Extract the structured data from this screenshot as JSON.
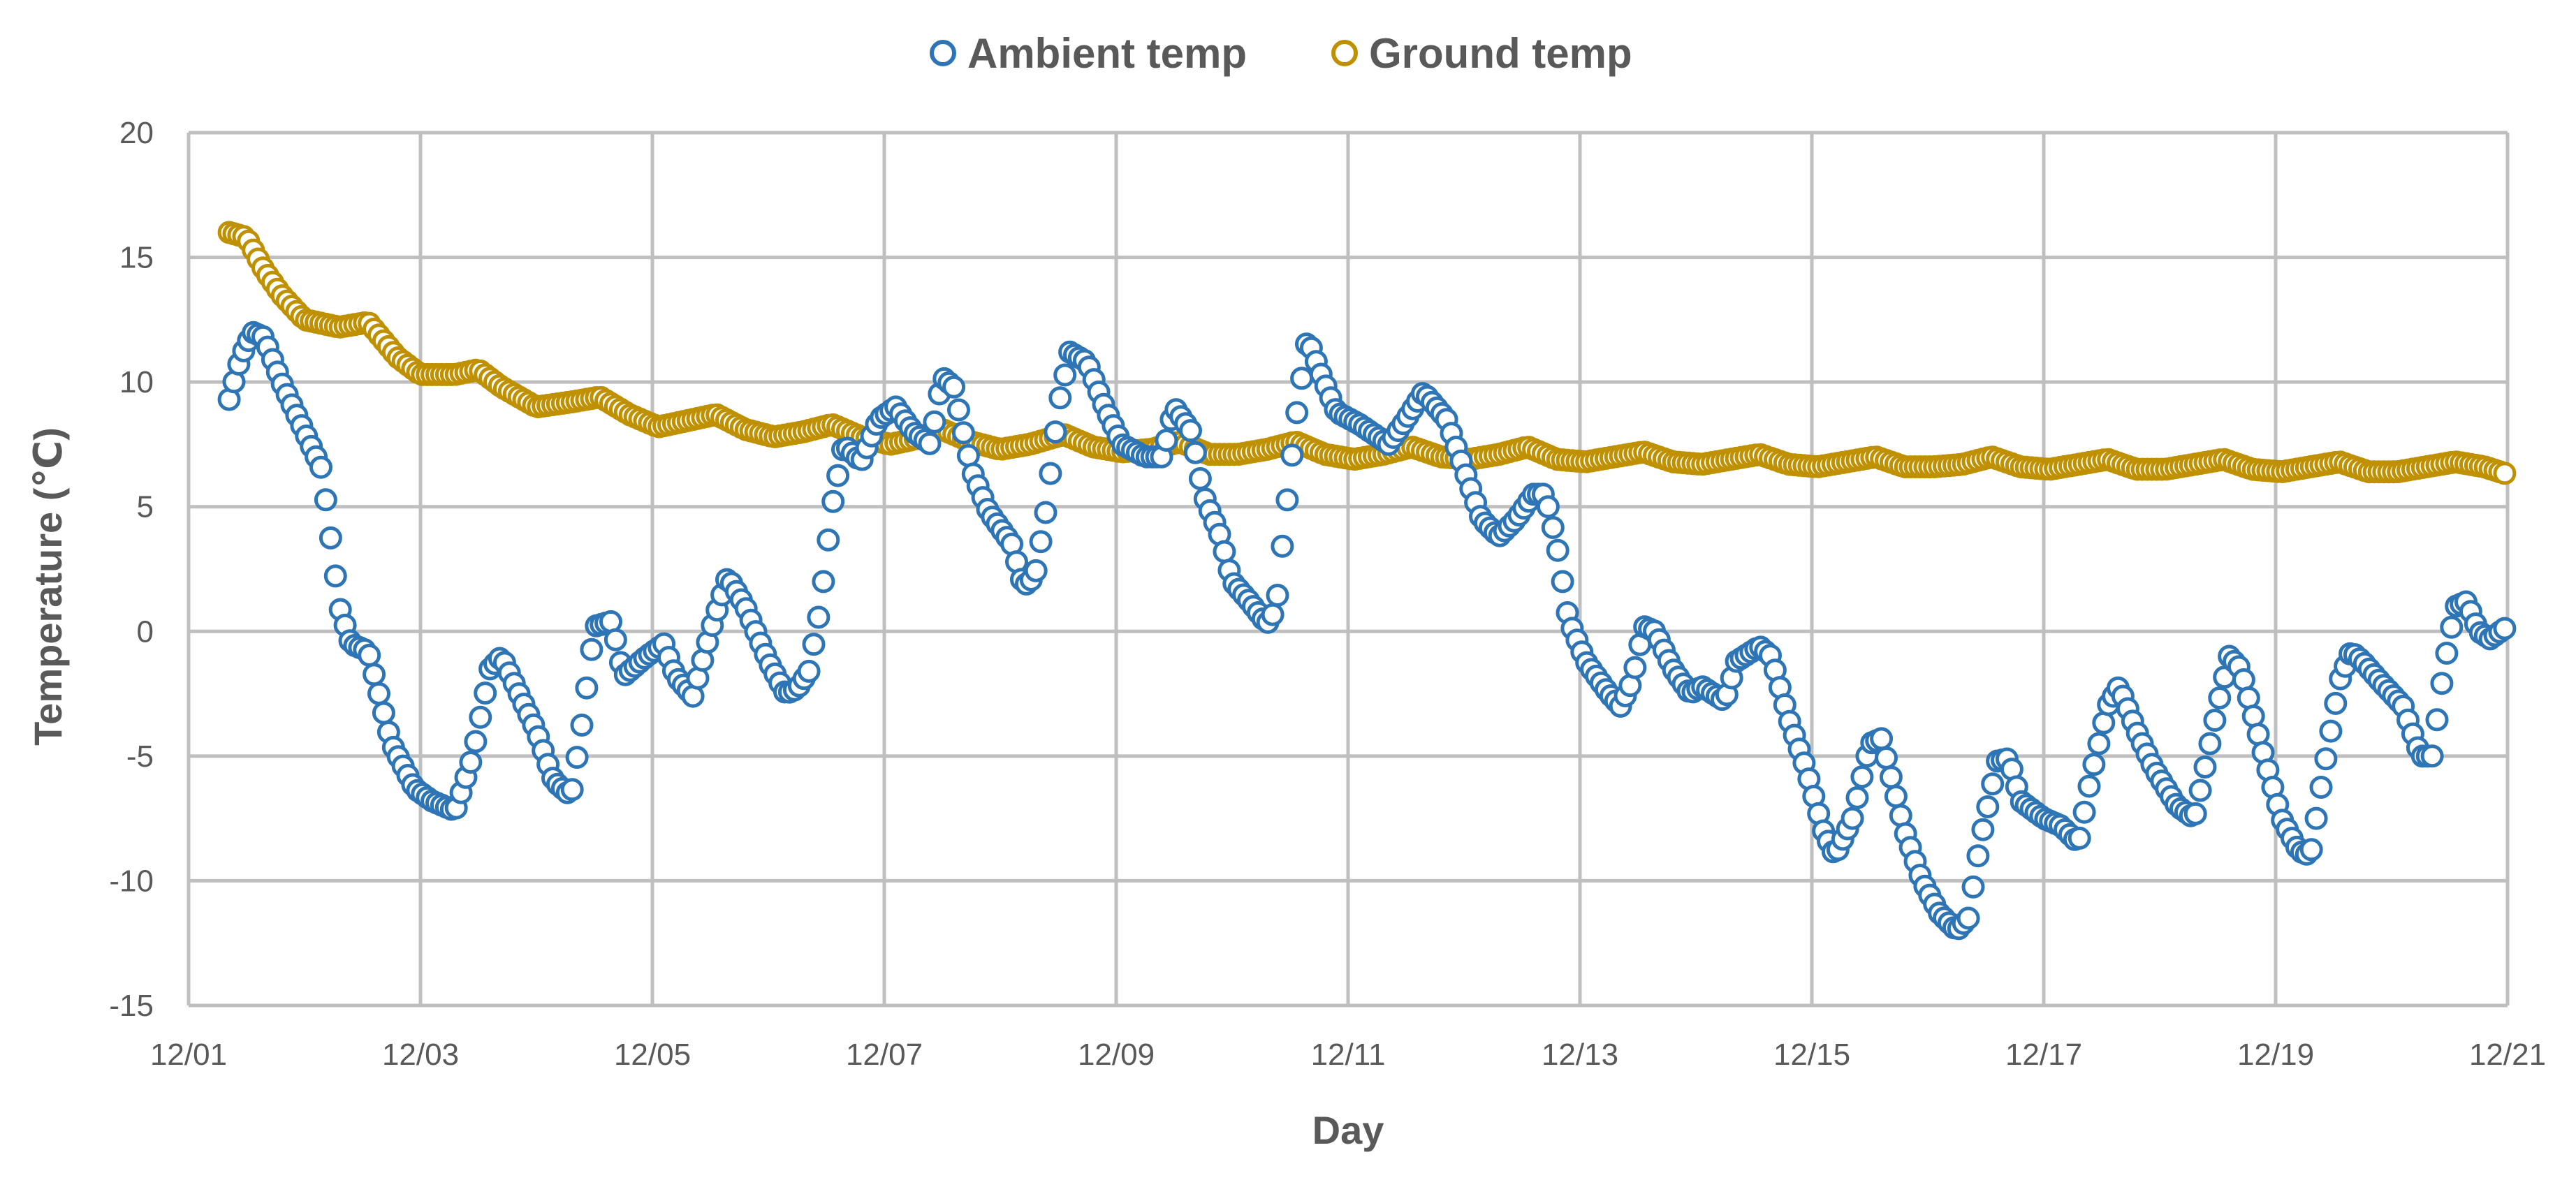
{
  "chart_data": {
    "type": "scatter",
    "title": "",
    "xlabel": "Day",
    "ylabel": "Temperature (℃)",
    "xlim": [
      1,
      21
    ],
    "ylim": [
      -15,
      20
    ],
    "yticks": [
      -15,
      -10,
      -5,
      0,
      5,
      10,
      15,
      20
    ],
    "xticks": [
      {
        "day": 1,
        "label": "12/01"
      },
      {
        "day": 3,
        "label": "12/03"
      },
      {
        "day": 5,
        "label": "12/05"
      },
      {
        "day": 7,
        "label": "12/07"
      },
      {
        "day": 9,
        "label": "12/09"
      },
      {
        "day": 11,
        "label": "12/11"
      },
      {
        "day": 13,
        "label": "12/13"
      },
      {
        "day": 15,
        "label": "12/15"
      },
      {
        "day": 17,
        "label": "12/17"
      },
      {
        "day": 19,
        "label": "12/19"
      },
      {
        "day": 21,
        "label": "12/21"
      }
    ],
    "grid": true,
    "legend_position": "top-center",
    "sample_interval_days": 0.0416667,
    "series": [
      {
        "name": "Ambient temp",
        "color": "#2E75B6",
        "anchors": [
          [
            1.35,
            9.3
          ],
          [
            1.45,
            11.0
          ],
          [
            1.55,
            12.0
          ],
          [
            1.65,
            11.8
          ],
          [
            1.8,
            10.0
          ],
          [
            2.0,
            8.0
          ],
          [
            2.15,
            6.5
          ],
          [
            2.3,
            1.0
          ],
          [
            2.4,
            -0.5
          ],
          [
            2.55,
            -0.8
          ],
          [
            2.75,
            -4.5
          ],
          [
            2.95,
            -6.3
          ],
          [
            3.1,
            -6.8
          ],
          [
            3.3,
            -7.2
          ],
          [
            3.45,
            -5.0
          ],
          [
            3.6,
            -1.5
          ],
          [
            3.7,
            -1.0
          ],
          [
            3.85,
            -2.5
          ],
          [
            4.0,
            -4.0
          ],
          [
            4.15,
            -6.0
          ],
          [
            4.3,
            -6.6
          ],
          [
            4.4,
            -3.5
          ],
          [
            4.5,
            0.2
          ],
          [
            4.65,
            0.4
          ],
          [
            4.75,
            -1.8
          ],
          [
            4.95,
            -1.0
          ],
          [
            5.1,
            -0.5
          ],
          [
            5.2,
            -1.8
          ],
          [
            5.35,
            -2.6
          ],
          [
            5.5,
            0.0
          ],
          [
            5.65,
            2.2
          ],
          [
            5.8,
            1.0
          ],
          [
            6.0,
            -1.2
          ],
          [
            6.15,
            -2.5
          ],
          [
            6.25,
            -2.3
          ],
          [
            6.35,
            -1.6
          ],
          [
            6.45,
            1.0
          ],
          [
            6.55,
            5.0
          ],
          [
            6.65,
            7.5
          ],
          [
            6.8,
            6.8
          ],
          [
            6.95,
            8.5
          ],
          [
            7.1,
            9.0
          ],
          [
            7.25,
            8.0
          ],
          [
            7.4,
            7.5
          ],
          [
            7.5,
            10.2
          ],
          [
            7.6,
            9.8
          ],
          [
            7.75,
            6.5
          ],
          [
            7.9,
            4.8
          ],
          [
            8.1,
            3.5
          ],
          [
            8.2,
            1.8
          ],
          [
            8.3,
            2.2
          ],
          [
            8.4,
            5.0
          ],
          [
            8.5,
            9.0
          ],
          [
            8.6,
            11.2
          ],
          [
            8.75,
            10.8
          ],
          [
            8.9,
            9.0
          ],
          [
            9.05,
            7.5
          ],
          [
            9.25,
            7.0
          ],
          [
            9.4,
            7.0
          ],
          [
            9.5,
            9.0
          ],
          [
            9.65,
            8.0
          ],
          [
            9.75,
            5.5
          ],
          [
            9.9,
            3.8
          ],
          [
            10.0,
            2.0
          ],
          [
            10.15,
            1.2
          ],
          [
            10.3,
            0.3
          ],
          [
            10.38,
            0.9
          ],
          [
            10.45,
            4.2
          ],
          [
            10.55,
            8.5
          ],
          [
            10.65,
            11.8
          ],
          [
            10.75,
            10.5
          ],
          [
            10.9,
            8.8
          ],
          [
            11.1,
            8.3
          ],
          [
            11.35,
            7.5
          ],
          [
            11.5,
            8.5
          ],
          [
            11.65,
            9.6
          ],
          [
            11.85,
            8.5
          ],
          [
            12.0,
            6.5
          ],
          [
            12.15,
            4.5
          ],
          [
            12.3,
            3.8
          ],
          [
            12.45,
            4.5
          ],
          [
            12.6,
            5.5
          ],
          [
            12.7,
            5.5
          ],
          [
            12.8,
            3.5
          ],
          [
            12.9,
            0.5
          ],
          [
            13.05,
            -1.2
          ],
          [
            13.25,
            -2.5
          ],
          [
            13.35,
            -3.0
          ],
          [
            13.45,
            -2.0
          ],
          [
            13.55,
            0.2
          ],
          [
            13.65,
            0.0
          ],
          [
            13.8,
            -1.5
          ],
          [
            13.95,
            -2.5
          ],
          [
            14.05,
            -2.2
          ],
          [
            14.25,
            -2.8
          ],
          [
            14.35,
            -1.2
          ],
          [
            14.55,
            -0.6
          ],
          [
            14.65,
            -1.0
          ],
          [
            14.8,
            -3.5
          ],
          [
            14.95,
            -5.5
          ],
          [
            15.1,
            -8.0
          ],
          [
            15.2,
            -9.0
          ],
          [
            15.35,
            -7.5
          ],
          [
            15.5,
            -4.5
          ],
          [
            15.6,
            -4.3
          ],
          [
            15.8,
            -8.0
          ],
          [
            15.95,
            -10.0
          ],
          [
            16.1,
            -11.3
          ],
          [
            16.25,
            -12.0
          ],
          [
            16.35,
            -11.5
          ],
          [
            16.45,
            -8.5
          ],
          [
            16.6,
            -5.2
          ],
          [
            16.7,
            -5.1
          ],
          [
            16.8,
            -6.8
          ],
          [
            17.0,
            -7.5
          ],
          [
            17.15,
            -7.8
          ],
          [
            17.3,
            -8.5
          ],
          [
            17.4,
            -6.0
          ],
          [
            17.55,
            -3.0
          ],
          [
            17.65,
            -2.2
          ],
          [
            17.8,
            -4.0
          ],
          [
            17.95,
            -5.5
          ],
          [
            18.15,
            -7.0
          ],
          [
            18.3,
            -7.5
          ],
          [
            18.5,
            -3.0
          ],
          [
            18.6,
            -1.0
          ],
          [
            18.7,
            -1.5
          ],
          [
            18.9,
            -5.0
          ],
          [
            19.05,
            -7.5
          ],
          [
            19.2,
            -8.8
          ],
          [
            19.3,
            -9.0
          ],
          [
            19.4,
            -6.0
          ],
          [
            19.55,
            -2.0
          ],
          [
            19.65,
            -0.8
          ],
          [
            19.75,
            -1.2
          ],
          [
            19.9,
            -2.0
          ],
          [
            20.1,
            -3.0
          ],
          [
            20.25,
            -5.0
          ],
          [
            20.35,
            -5.0
          ],
          [
            20.45,
            -1.5
          ],
          [
            20.55,
            1.0
          ],
          [
            20.65,
            1.2
          ],
          [
            20.75,
            0.0
          ],
          [
            20.85,
            -0.3
          ],
          [
            21.0,
            0.2
          ]
        ]
      },
      {
        "name": "Ground temp",
        "color": "#BF9000",
        "anchors": [
          [
            1.35,
            16.0
          ],
          [
            1.5,
            15.8
          ],
          [
            1.65,
            14.5
          ],
          [
            1.8,
            13.5
          ],
          [
            2.0,
            12.5
          ],
          [
            2.3,
            12.2
          ],
          [
            2.55,
            12.4
          ],
          [
            2.8,
            11.0
          ],
          [
            3.0,
            10.3
          ],
          [
            3.3,
            10.3
          ],
          [
            3.5,
            10.5
          ],
          [
            3.7,
            9.8
          ],
          [
            4.0,
            9.0
          ],
          [
            4.3,
            9.2
          ],
          [
            4.55,
            9.4
          ],
          [
            4.8,
            8.7
          ],
          [
            5.05,
            8.2
          ],
          [
            5.35,
            8.5
          ],
          [
            5.55,
            8.7
          ],
          [
            5.8,
            8.1
          ],
          [
            6.05,
            7.8
          ],
          [
            6.3,
            8.0
          ],
          [
            6.55,
            8.3
          ],
          [
            6.8,
            7.8
          ],
          [
            7.05,
            7.5
          ],
          [
            7.25,
            7.7
          ],
          [
            7.5,
            8.1
          ],
          [
            7.75,
            7.6
          ],
          [
            8.0,
            7.3
          ],
          [
            8.25,
            7.5
          ],
          [
            8.55,
            7.9
          ],
          [
            8.8,
            7.4
          ],
          [
            9.05,
            7.2
          ],
          [
            9.3,
            7.3
          ],
          [
            9.55,
            7.6
          ],
          [
            9.8,
            7.1
          ],
          [
            10.05,
            7.1
          ],
          [
            10.3,
            7.3
          ],
          [
            10.55,
            7.6
          ],
          [
            10.8,
            7.1
          ],
          [
            11.05,
            6.9
          ],
          [
            11.3,
            7.1
          ],
          [
            11.55,
            7.4
          ],
          [
            11.8,
            7.0
          ],
          [
            12.05,
            6.9
          ],
          [
            12.3,
            7.1
          ],
          [
            12.55,
            7.4
          ],
          [
            12.8,
            6.9
          ],
          [
            13.05,
            6.8
          ],
          [
            13.3,
            7.0
          ],
          [
            13.55,
            7.2
          ],
          [
            13.8,
            6.8
          ],
          [
            14.05,
            6.7
          ],
          [
            14.3,
            6.9
          ],
          [
            14.55,
            7.1
          ],
          [
            14.8,
            6.7
          ],
          [
            15.05,
            6.6
          ],
          [
            15.3,
            6.8
          ],
          [
            15.55,
            7.0
          ],
          [
            15.8,
            6.6
          ],
          [
            16.05,
            6.6
          ],
          [
            16.3,
            6.7
          ],
          [
            16.55,
            7.0
          ],
          [
            16.8,
            6.6
          ],
          [
            17.05,
            6.5
          ],
          [
            17.3,
            6.7
          ],
          [
            17.55,
            6.9
          ],
          [
            17.8,
            6.5
          ],
          [
            18.05,
            6.5
          ],
          [
            18.3,
            6.7
          ],
          [
            18.55,
            6.9
          ],
          [
            18.8,
            6.5
          ],
          [
            19.05,
            6.4
          ],
          [
            19.3,
            6.6
          ],
          [
            19.55,
            6.8
          ],
          [
            19.8,
            6.4
          ],
          [
            20.05,
            6.4
          ],
          [
            20.3,
            6.6
          ],
          [
            20.55,
            6.8
          ],
          [
            20.8,
            6.6
          ],
          [
            21.0,
            6.3
          ]
        ]
      }
    ]
  }
}
